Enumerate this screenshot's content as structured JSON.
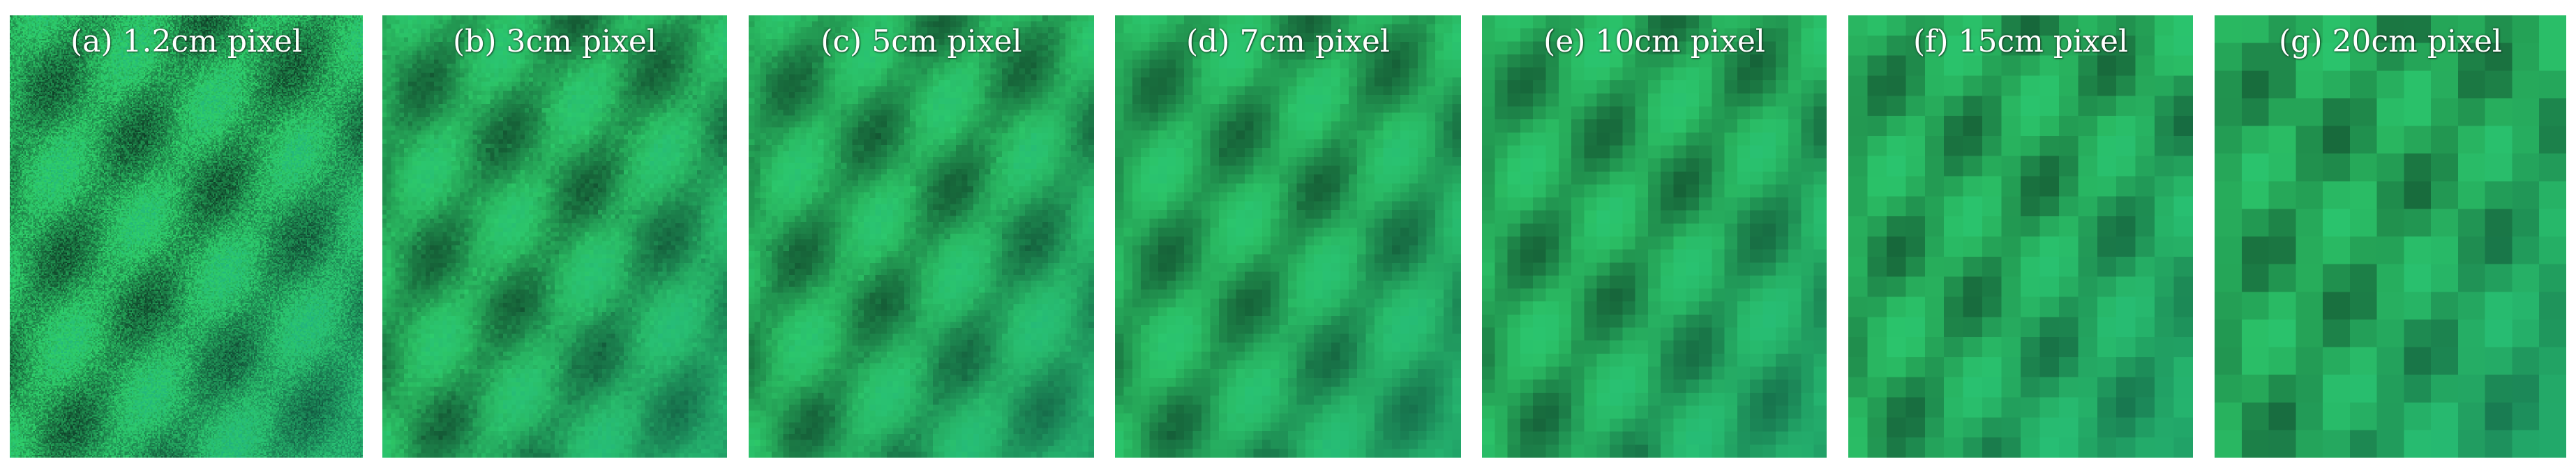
{
  "panels": [
    {
      "id": "a",
      "caption": "(a) 1.2cm pixel",
      "resolution_cm": 1.2
    },
    {
      "id": "b",
      "caption": "(b) 3cm pixel",
      "resolution_cm": 3
    },
    {
      "id": "c",
      "caption": "(c) 5cm pixel",
      "resolution_cm": 5
    },
    {
      "id": "d",
      "caption": "(d) 7cm pixel",
      "resolution_cm": 7
    },
    {
      "id": "e",
      "caption": "(e) 10cm pixel",
      "resolution_cm": 10
    },
    {
      "id": "f",
      "caption": "(f) 15cm pixel",
      "resolution_cm": 15
    },
    {
      "id": "g",
      "caption": "(g) 20cm pixel",
      "resolution_cm": 20
    }
  ],
  "colors": {
    "canopy_dark": "#0d3a24",
    "canopy_mid": "#1f8a4c",
    "canopy_bright": "#2fd06a",
    "canopy_teal": "#1aa389",
    "background": "#ffffff"
  }
}
